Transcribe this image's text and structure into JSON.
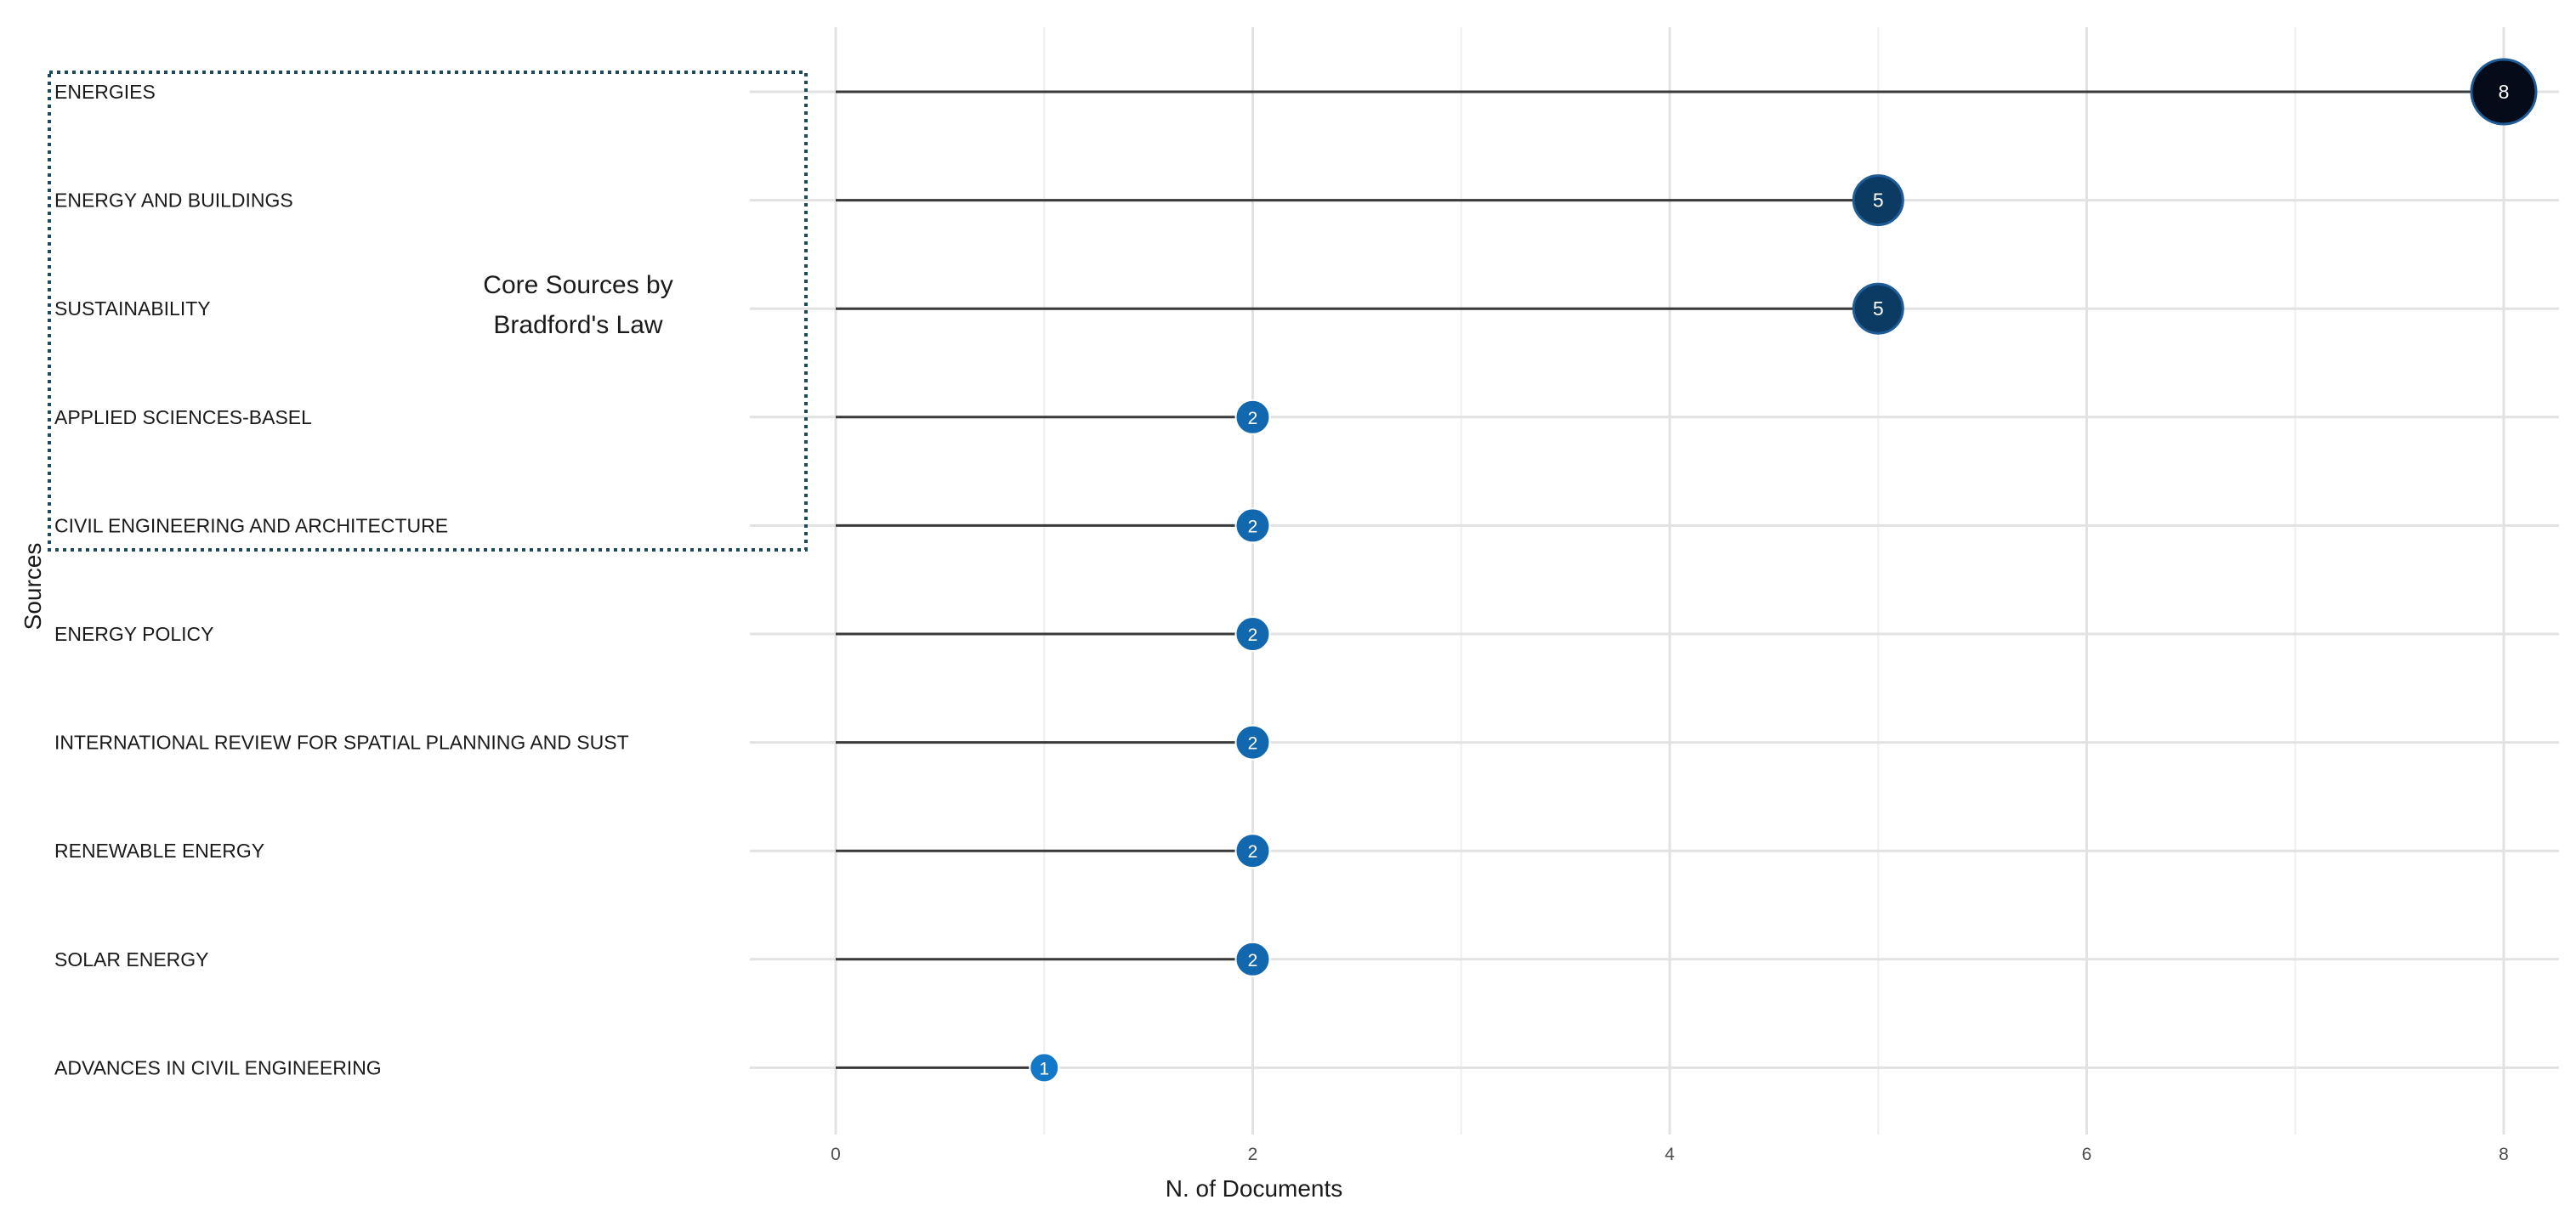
{
  "chart_data": {
    "type": "lollipop",
    "title": "",
    "xlabel": "N. of Documents",
    "ylabel": "Sources",
    "xlim": [
      0,
      8
    ],
    "x_ticks": [
      0,
      2,
      4,
      6,
      8
    ],
    "grid": true,
    "categories": [
      "ENERGIES",
      "ENERGY AND BUILDINGS",
      "SUSTAINABILITY",
      "APPLIED SCIENCES-BASEL",
      "CIVIL ENGINEERING AND ARCHITECTURE",
      "ENERGY POLICY",
      "INTERNATIONAL REVIEW FOR SPATIAL PLANNING AND SUST",
      "RENEWABLE ENERGY",
      "SOLAR ENERGY",
      "ADVANCES IN CIVIL ENGINEERING"
    ],
    "values": [
      8,
      5,
      5,
      2,
      2,
      2,
      2,
      2,
      2,
      1
    ],
    "annotation": {
      "lines": [
        "Core Sources by",
        "Bradford's Law"
      ],
      "highlighted_count": 5
    },
    "colors": {
      "low": "#1478c8",
      "high": "#050b18",
      "outline_high": "#1f5c96",
      "stem": "#3a3a3a",
      "box": "#1f4a5e"
    }
  }
}
